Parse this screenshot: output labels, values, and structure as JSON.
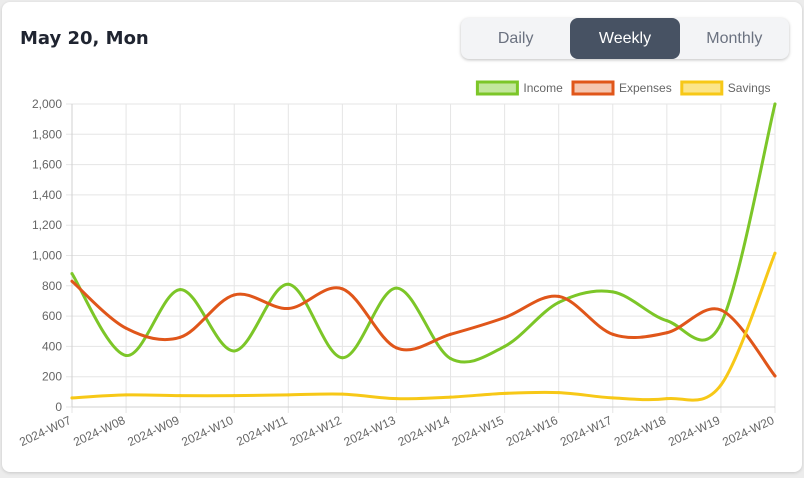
{
  "header": {
    "date_title": "May 20, Mon"
  },
  "range_toggle": {
    "options": [
      "Daily",
      "Weekly",
      "Monthly"
    ],
    "selected": "Weekly"
  },
  "chart_data": {
    "type": "line",
    "categories": [
      "2024-W07",
      "2024-W08",
      "2024-W09",
      "2024-W10",
      "2024-W11",
      "2024-W12",
      "2024-W13",
      "2024-W14",
      "2024-W15",
      "2024-W16",
      "2024-W17",
      "2024-W18",
      "2024-W19",
      "2024-W20"
    ],
    "series": [
      {
        "name": "Income",
        "color": "#7cc628",
        "fill": "#c3e79d",
        "values": [
          880,
          340,
          775,
          370,
          810,
          325,
          785,
          320,
          400,
          690,
          760,
          570,
          550,
          2000
        ]
      },
      {
        "name": "Expenses",
        "color": "#e0561a",
        "fill": "#f5c6b0",
        "values": [
          830,
          520,
          460,
          740,
          650,
          780,
          390,
          480,
          590,
          730,
          480,
          490,
          640,
          205
        ]
      },
      {
        "name": "Savings",
        "color": "#f7c817",
        "fill": "#fbe58a",
        "values": [
          60,
          80,
          75,
          75,
          80,
          85,
          55,
          65,
          90,
          95,
          60,
          55,
          145,
          1015
        ]
      }
    ],
    "y_ticks": [
      "0",
      "200",
      "400",
      "600",
      "800",
      "1,000",
      "1,200",
      "1,400",
      "1,600",
      "1,800",
      "2,000"
    ],
    "ylim": [
      0,
      2000
    ],
    "grid": true,
    "legend_position": "top-right"
  }
}
